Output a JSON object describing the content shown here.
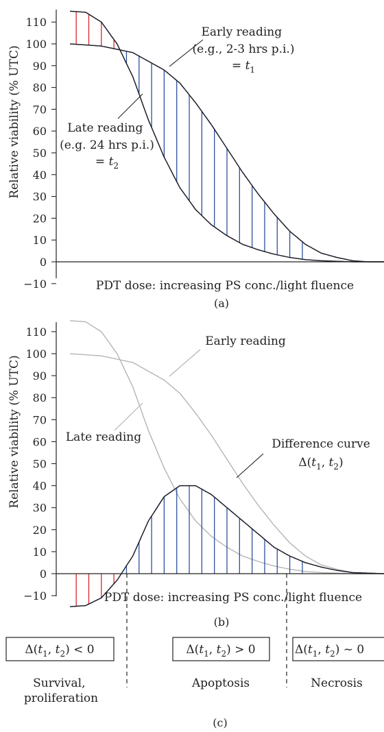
{
  "colors": {
    "curve": "#1c1c2a",
    "grey_curve": "#b4b4b4",
    "grey_text": "#a8a8a8",
    "positive_hatch": "#2d4f9e",
    "negative_hatch": "#d42a2a",
    "axis": "#222222"
  },
  "panel_a": {
    "caption": "(a)",
    "early_label": [
      "Early reading",
      "(e.g., 2-3 hrs p.i.)",
      "= t1"
    ],
    "late_label": [
      "Late reading",
      "(e.g. 24 hrs p.i.)",
      "= t2"
    ]
  },
  "panel_b": {
    "caption": "(b)",
    "early_label": "Early reading",
    "late_label": "Late reading",
    "difference_label": [
      "Difference curve",
      "Δ(t1, t2)"
    ]
  },
  "panel_c": {
    "caption": "(c)",
    "regions": [
      {
        "formula": "Δ(t1, t2) < 0",
        "description": [
          "Survival,",
          "proliferation"
        ]
      },
      {
        "formula": "Δ(t1, t2) > 0",
        "description": [
          "Apoptosis"
        ]
      },
      {
        "formula": "Δ(t1, t2) ~ 0",
        "description": [
          "Necrosis"
        ]
      }
    ]
  },
  "chart_data": [
    {
      "type": "line",
      "panel": "(a)",
      "ylabel": "Relative viability (% UTC)",
      "xlabel": "PDT dose: increasing PS conc./light fluence",
      "ylim": [
        -10,
        115
      ],
      "yticks": [
        -10,
        0,
        10,
        20,
        30,
        40,
        50,
        60,
        70,
        80,
        90,
        100,
        110
      ],
      "series": [
        {
          "name": "Early reading (e.g., 2-3 hrs p.i.) = t1",
          "x": [
            0,
            0.1,
            0.2,
            0.3,
            0.35,
            0.4,
            0.45,
            0.5,
            0.55,
            0.6,
            0.65,
            0.7,
            0.75,
            0.8,
            0.85,
            0.9,
            0.95,
            1.0
          ],
          "y": [
            100,
            99,
            96,
            88,
            82,
            73,
            63,
            52,
            41,
            31,
            22,
            14,
            8,
            4,
            2,
            0.5,
            0,
            0
          ]
        },
        {
          "name": "Late reading (e.g. 24 hrs p.i.) = t2",
          "x": [
            0,
            0.05,
            0.1,
            0.15,
            0.2,
            0.25,
            0.3,
            0.35,
            0.4,
            0.45,
            0.5,
            0.55,
            0.6,
            0.65,
            0.7,
            0.75,
            0.8,
            0.9,
            1.0
          ],
          "y": [
            115,
            114.5,
            110,
            100,
            85,
            65,
            48,
            34,
            24,
            17,
            12,
            8,
            5.5,
            3.5,
            2,
            1,
            0.5,
            0,
            0
          ]
        }
      ]
    },
    {
      "type": "line",
      "panel": "(b)",
      "ylabel": "Relative viability (% UTC)",
      "xlabel": "PDT dose: increasing PS conc./light fluence",
      "ylim": [
        -15,
        115
      ],
      "yticks": [
        -10,
        0,
        10,
        20,
        30,
        40,
        50,
        60,
        70,
        80,
        90,
        100,
        110
      ],
      "series": [
        {
          "name": "Difference curve Δ(t1, t2)",
          "x": [
            0,
            0.05,
            0.1,
            0.15,
            0.2,
            0.25,
            0.3,
            0.35,
            0.4,
            0.45,
            0.5,
            0.55,
            0.6,
            0.65,
            0.7,
            0.75,
            0.8,
            0.85,
            0.9,
            1.0
          ],
          "y": [
            -15,
            -14.5,
            -11,
            -3,
            8,
            24,
            35,
            40,
            40,
            36,
            30,
            24,
            18,
            12,
            8,
            5,
            3,
            1.5,
            0.5,
            0
          ]
        },
        {
          "name": "Early reading",
          "x": [
            0,
            0.1,
            0.2,
            0.3,
            0.35,
            0.4,
            0.45,
            0.5,
            0.55,
            0.6,
            0.65,
            0.7,
            0.75,
            0.8,
            0.85,
            0.9,
            0.95,
            1.0
          ],
          "y": [
            100,
            99,
            96,
            88,
            82,
            73,
            63,
            52,
            41,
            31,
            22,
            14,
            8,
            4,
            2,
            0.5,
            0,
            0
          ]
        },
        {
          "name": "Late reading",
          "x": [
            0,
            0.05,
            0.1,
            0.15,
            0.2,
            0.25,
            0.3,
            0.35,
            0.4,
            0.45,
            0.5,
            0.55,
            0.6,
            0.65,
            0.7,
            0.75,
            0.8,
            0.9,
            1.0
          ],
          "y": [
            115,
            114.5,
            110,
            100,
            85,
            65,
            48,
            34,
            24,
            17,
            12,
            8,
            5.5,
            3.5,
            2,
            1,
            0.5,
            0,
            0
          ]
        }
      ]
    }
  ]
}
